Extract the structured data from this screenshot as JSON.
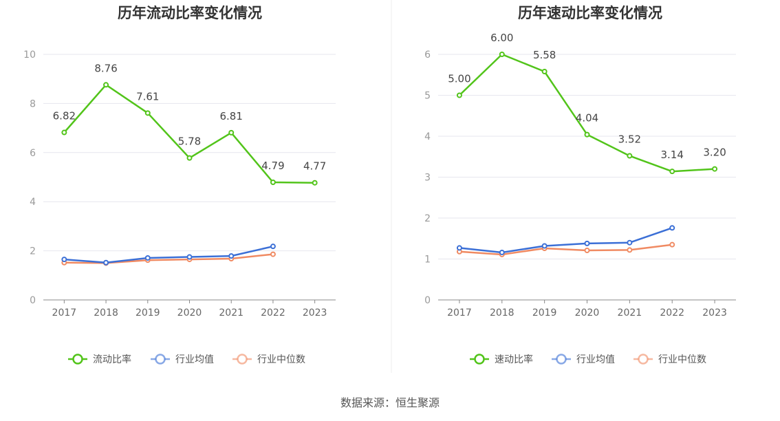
{
  "source_label": "数据来源：恒生聚源",
  "colors": {
    "primary": "#52c41a",
    "avg": "#3b6fd6",
    "median": "#f08a62",
    "grid": "#e6e6ee",
    "axis": "#888888"
  },
  "chart_data": [
    {
      "type": "line",
      "title": "历年流动比率变化情况",
      "categories": [
        "2017",
        "2018",
        "2019",
        "2020",
        "2021",
        "2022",
        "2023"
      ],
      "ylim": [
        0,
        10
      ],
      "yticks": [
        0,
        2,
        4,
        6,
        8,
        10
      ],
      "grid": true,
      "legend_position": "bottom",
      "series": [
        {
          "name": "流动比率",
          "values": [
            6.82,
            8.76,
            7.61,
            5.78,
            6.81,
            4.79,
            4.77
          ],
          "labels": [
            "6.82",
            "8.76",
            "7.61",
            "5.78",
            "6.81",
            "4.79",
            "4.77"
          ],
          "color": "#52c41a"
        },
        {
          "name": "行业均值",
          "values": [
            1.65,
            1.52,
            1.71,
            1.75,
            1.79,
            2.18,
            null
          ],
          "color": "#3b6fd6"
        },
        {
          "name": "行业中位数",
          "values": [
            1.52,
            1.5,
            1.62,
            1.65,
            1.68,
            1.86,
            null
          ],
          "color": "#f08a62"
        }
      ]
    },
    {
      "type": "line",
      "title": "历年速动比率变化情况",
      "categories": [
        "2017",
        "2018",
        "2019",
        "2020",
        "2021",
        "2022",
        "2023"
      ],
      "ylim": [
        0,
        6
      ],
      "yticks": [
        0,
        1,
        2,
        3,
        4,
        5,
        6
      ],
      "grid": true,
      "legend_position": "bottom",
      "series": [
        {
          "name": "速动比率",
          "values": [
            5.0,
            6.0,
            5.58,
            4.04,
            3.52,
            3.14,
            3.2
          ],
          "labels": [
            "5.00",
            "6.00",
            "5.58",
            "4.04",
            "3.52",
            "3.14",
            "3.20"
          ],
          "color": "#52c41a"
        },
        {
          "name": "行业均值",
          "values": [
            1.27,
            1.16,
            1.32,
            1.38,
            1.4,
            1.76,
            null
          ],
          "color": "#3b6fd6"
        },
        {
          "name": "行业中位数",
          "values": [
            1.18,
            1.11,
            1.26,
            1.21,
            1.22,
            1.35,
            null
          ],
          "color": "#f08a62"
        }
      ]
    }
  ]
}
